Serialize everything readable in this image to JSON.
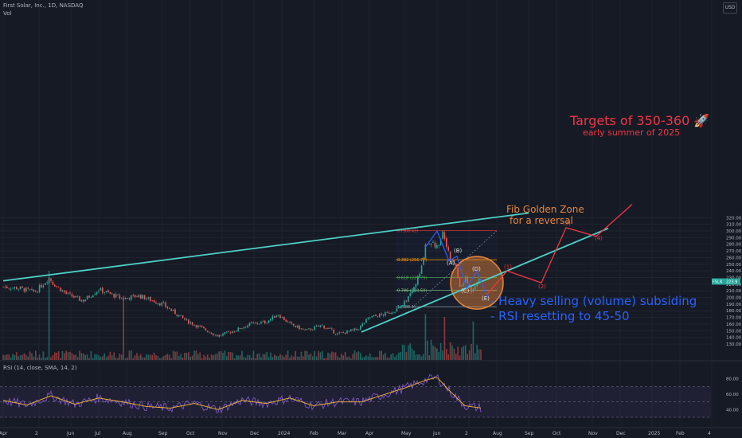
{
  "header": {
    "title": "First Solar, Inc., 1D, NASDAQ",
    "vol_label": "Vol",
    "rsi_label": "RSI (14, close, SMA, 14, 2)",
    "currency": "USD"
  },
  "price_badge": {
    "symbol": "FSLR",
    "value": "223.9"
  },
  "colors": {
    "background": "#161a25",
    "up": "#26a69a",
    "down": "#ef5350",
    "trendline": "#4dd0c6",
    "projection": "#f23645",
    "rsi_line": "#7e57c2",
    "rsi_ma": "#f7b731",
    "note_blue": "#2962ff",
    "zone": "#e8863a"
  },
  "chart_data": {
    "type": "candlestick",
    "title": "First Solar, Inc., 1D, NASDAQ",
    "y_axis": {
      "min": 124,
      "max": 324,
      "side": "right",
      "ticks": [
        130,
        140,
        150,
        160,
        170,
        180,
        190,
        200,
        210,
        220,
        230,
        240,
        250,
        260,
        270,
        280,
        290,
        300,
        310,
        320
      ],
      "tick_labels": [
        "130.00",
        "140.00",
        "150.00",
        "160.00",
        "170.00",
        "180.00",
        "190.00",
        "200.00",
        "210.00",
        "220.00",
        "230.00",
        "240.00",
        "250.00",
        "260.00",
        "270.00",
        "280.00",
        "290.00",
        "300.00",
        "310.00",
        "320.00"
      ]
    },
    "x_axis": {
      "labels": [
        "Apr",
        "2",
        "Jun",
        "Jul",
        "Aug",
        "Sep",
        "Oct",
        "Nov",
        "Dec",
        "2024",
        "Feb",
        "Mar",
        "Apr",
        "May",
        "Jun",
        "2",
        "Aug",
        "Sep",
        "Oct",
        "Nov",
        "Dec",
        "2025",
        "Feb",
        "4"
      ],
      "label_days": [
        0,
        45,
        85,
        120,
        155,
        200,
        235,
        275,
        315,
        350,
        390,
        425,
        460,
        505,
        545,
        585,
        620,
        660,
        695,
        740,
        775,
        815,
        850,
        890
      ]
    },
    "price_path": {
      "days": [
        0,
        20,
        40,
        58,
        62,
        80,
        100,
        120,
        150,
        170,
        200,
        230,
        270,
        290,
        310,
        330,
        345,
        360,
        380,
        400,
        420,
        445,
        460,
        480,
        500,
        515,
        525,
        530,
        537,
        545,
        552,
        557,
        561,
        568,
        574,
        580,
        588,
        595,
        600
      ],
      "close": [
        216,
        214,
        208,
        230,
        222,
        205,
        195,
        212,
        198,
        203,
        190,
        165,
        142,
        150,
        160,
        163,
        175,
        160,
        150,
        158,
        145,
        152,
        170,
        175,
        185,
        212,
        240,
        280,
        285,
        275,
        300,
        280,
        255,
        250,
        212,
        230,
        210,
        225,
        224
      ]
    },
    "volume_spikes": [
      {
        "day": 58,
        "rel": 1.0
      },
      {
        "day": 152,
        "rel": 0.72
      },
      {
        "day": 530,
        "rel": 0.5
      },
      {
        "day": 555,
        "rel": 0.45
      },
      {
        "day": 590,
        "rel": 0.38
      }
    ],
    "rsi": {
      "panel_range": [
        30,
        90
      ],
      "ticks": [
        40,
        60,
        80
      ],
      "tick_labels": [
        "40.00",
        "60.00",
        "80.00"
      ],
      "band": [
        30,
        70
      ],
      "days": [
        0,
        30,
        60,
        90,
        120,
        150,
        180,
        210,
        240,
        270,
        300,
        330,
        360,
        390,
        420,
        450,
        480,
        510,
        530,
        545,
        560,
        580,
        600
      ],
      "values": [
        52,
        46,
        58,
        47,
        55,
        50,
        44,
        42,
        48,
        40,
        52,
        48,
        55,
        45,
        50,
        50,
        60,
        70,
        78,
        82,
        65,
        45,
        42
      ]
    },
    "fib_levels": [
      {
        "label": "0 (300.43)",
        "value": 300.43,
        "color": "#f23645"
      },
      {
        "label": "0.382 (256.77)",
        "value": 256.77,
        "color": "#ff9800"
      },
      {
        "label": "0.618 (229.79)",
        "value": 229.79,
        "color": "#4caf50"
      },
      {
        "label": "0.786 (210.59)",
        "value": 210.59,
        "color": "#81c784"
      },
      {
        "label": "1 (186.1)",
        "value": 186.1,
        "color": "#90a4ae"
      }
    ],
    "trendlines": [
      {
        "from": {
          "day": 0,
          "price": 225
        },
        "to": {
          "day": 660,
          "price": 327
        }
      },
      {
        "from": {
          "day": 450,
          "price": 148
        },
        "to": {
          "day": 760,
          "price": 304
        }
      }
    ],
    "wave_path": [
      {
        "day": 530,
        "price": 275
      },
      {
        "day": 545,
        "price": 300
      },
      {
        "day": 560,
        "price": 255
      },
      {
        "day": 570,
        "price": 262
      },
      {
        "day": 582,
        "price": 214
      },
      {
        "day": 595,
        "price": 240
      },
      {
        "day": 608,
        "price": 200
      }
    ],
    "wave_labels": [
      {
        "label": "(A)",
        "day": 562,
        "price": 249
      },
      {
        "label": "(B)",
        "day": 571,
        "price": 268
      },
      {
        "label": "(C)",
        "day": 580,
        "price": 207
      },
      {
        "label": "(D)",
        "day": 594,
        "price": 240
      },
      {
        "label": "(E)",
        "day": 606,
        "price": 196
      }
    ],
    "projection": {
      "points": [
        {
          "day": 608,
          "price": 205
        },
        {
          "day": 633,
          "price": 240
        },
        {
          "day": 676,
          "price": 222
        },
        {
          "day": 707,
          "price": 305
        },
        {
          "day": 745,
          "price": 292
        },
        {
          "day": 790,
          "price": 340
        }
      ],
      "labels": [
        {
          "label": "(1)",
          "day": 633,
          "price": 243
        },
        {
          "label": "(2)",
          "day": 676,
          "price": 214
        },
        {
          "label": "(3)",
          "day": 707,
          "price": 309
        },
        {
          "label": "(4)",
          "day": 747,
          "price": 286
        }
      ]
    },
    "zone_circle": {
      "day": 595,
      "price": 222,
      "radius_days": 33
    }
  },
  "annotations": {
    "targets": "Targets of 350-360 🚀",
    "targets_sub": "early summer of 2025",
    "fib_zone_1": "Fib Golden Zone",
    "fib_zone_2": "for a reversal",
    "note_1": "- Heavy selling (volume) subsiding",
    "note_2": "- RSI resetting to 45-50"
  }
}
